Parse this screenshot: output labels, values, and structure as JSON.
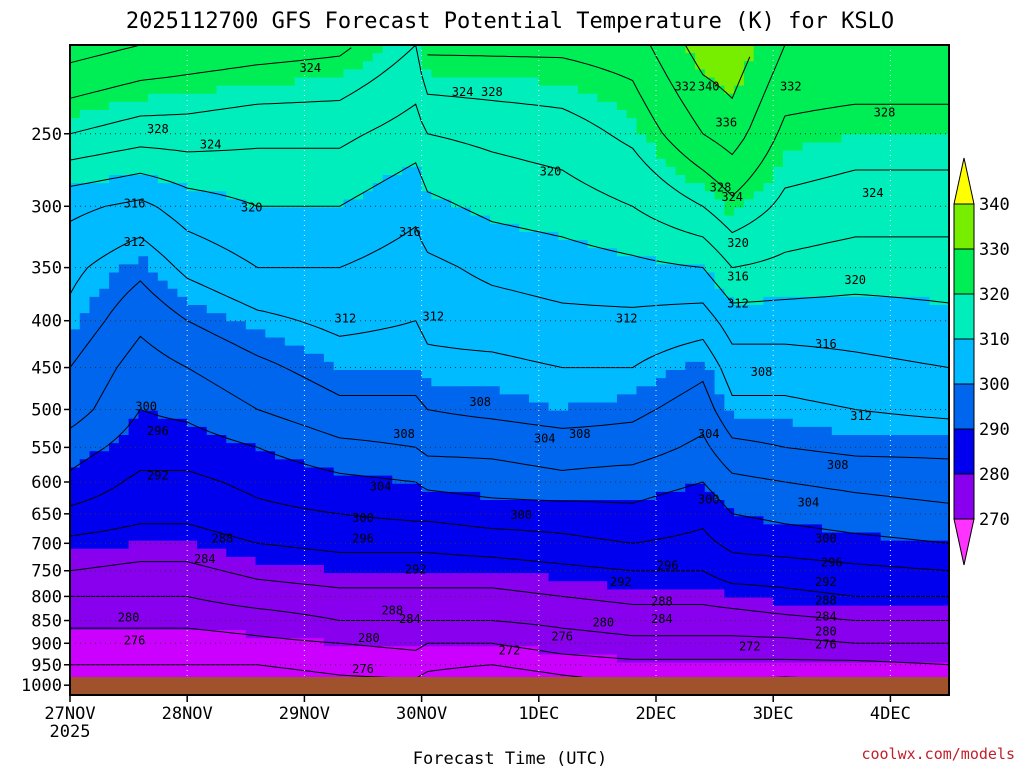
{
  "chart_data": {
    "type": "heatmap",
    "title": "2025112700 GFS Forecast Potential Temperature (K) for KSLO",
    "xlabel": "Forecast Time (UTC)",
    "ylabel": "",
    "credit": "coolwx.com/models",
    "x_ticks": [
      "27NOV",
      "28NOV",
      "29NOV",
      "30NOV",
      "1DEC",
      "2DEC",
      "3DEC",
      "4DEC"
    ],
    "x_sub_label": "2025",
    "x_range_days": [
      0,
      7.5
    ],
    "y_ticks": [
      250,
      300,
      350,
      400,
      450,
      500,
      550,
      600,
      650,
      700,
      750,
      800,
      850,
      900,
      950,
      1000
    ],
    "y_range_hpa": [
      200,
      1025
    ],
    "y_scale": "log",
    "grid": true,
    "colorbar": {
      "labels": [
        270,
        280,
        290,
        300,
        310,
        320,
        330,
        340
      ],
      "colors": [
        "#ff33ff",
        "#cc00ff",
        "#8800ee",
        "#0000ee",
        "#0066ee",
        "#00bbff",
        "#00eebb",
        "#00ee55",
        "#77ee00",
        "#ffff00"
      ]
    },
    "ground_color": "#a0522d",
    "profile_levels_hpa": [
      200,
      250,
      300,
      350,
      400,
      450,
      500,
      550,
      600,
      650,
      700,
      750,
      800,
      850,
      900,
      950,
      1000
    ],
    "profiles": [
      {
        "day": 0.0,
        "theta": [
          338,
          328,
          317,
          313,
          311,
          308,
          306,
          302,
          299,
          295,
          291,
          288,
          284,
          281,
          278,
          276,
          274
        ]
      },
      {
        "day": 0.6,
        "theta": [
          336,
          326,
          315,
          309,
          305,
          302,
          300,
          298,
          295,
          293,
          290,
          287,
          284,
          281,
          278,
          276,
          274
        ]
      },
      {
        "day": 1.0,
        "theta": [
          335,
          326,
          318,
          313,
          308,
          304,
          301,
          298,
          295,
          293,
          290,
          287,
          284,
          281,
          278,
          276,
          274
        ]
      },
      {
        "day": 1.6,
        "theta": [
          334,
          325,
          320,
          316,
          311,
          307,
          304,
          300,
          297,
          295,
          292,
          289,
          286,
          282,
          279,
          276,
          274
        ]
      },
      {
        "day": 2.3,
        "theta": [
          333,
          325,
          320,
          316,
          313,
          310,
          307,
          303,
          299,
          296,
          293,
          290,
          287,
          284,
          280,
          277,
          275
        ]
      },
      {
        "day": 2.95,
        "theta": [
          328,
          322,
          317,
          314,
          312,
          310,
          307,
          304,
          300,
          297,
          293,
          290,
          287,
          284,
          281,
          278,
          275
        ]
      },
      {
        "day": 3.05,
        "theta": [
          333,
          324,
          319,
          315,
          313,
          311,
          308,
          305,
          301,
          297,
          293,
          290,
          287,
          284,
          280,
          277,
          274
        ]
      },
      {
        "day": 3.6,
        "theta": [
          333,
          325,
          321,
          317,
          314,
          311,
          309,
          305,
          302,
          298,
          294,
          290,
          287,
          284,
          280,
          276,
          272
        ]
      },
      {
        "day": 4.2,
        "theta": [
          333,
          326,
          322,
          318,
          315,
          312,
          310,
          306,
          303,
          298,
          295,
          291,
          288,
          285,
          282,
          278,
          274
        ]
      },
      {
        "day": 4.8,
        "theta": [
          334,
          329,
          324,
          319,
          315,
          312,
          309,
          306,
          302,
          299,
          296,
          292,
          289,
          286,
          283,
          279,
          276
        ]
      },
      {
        "day": 5.4,
        "theta": [
          342,
          336,
          328,
          320,
          314,
          309,
          306,
          303,
          300,
          297,
          295,
          292,
          289,
          286,
          283,
          279,
          276
        ]
      },
      {
        "day": 5.65,
        "theta": [
          343,
          338,
          331,
          324,
          318,
          314,
          311,
          307,
          303,
          300,
          297,
          294,
          290,
          286,
          283,
          279,
          275
        ]
      },
      {
        "day": 6.1,
        "theta": [
          336,
          331,
          327,
          323,
          318,
          314,
          311,
          308,
          304,
          301,
          298,
          294,
          291,
          287,
          283,
          279,
          274
        ]
      },
      {
        "day": 6.7,
        "theta": [
          336,
          330,
          326,
          322,
          318,
          315,
          312,
          309,
          305,
          302,
          299,
          295,
          292,
          288,
          284,
          279,
          275
        ]
      },
      {
        "day": 7.5,
        "theta": [
          336,
          330,
          326,
          322,
          319,
          316,
          313,
          309,
          306,
          303,
          300,
          296,
          292,
          288,
          284,
          280,
          276
        ]
      }
    ],
    "contour_labels": [
      {
        "text": "324",
        "day": 2.05,
        "hpa": 212
      },
      {
        "text": "324",
        "day": 3.35,
        "hpa": 225
      },
      {
        "text": "328",
        "day": 3.6,
        "hpa": 225
      },
      {
        "text": "332",
        "day": 5.25,
        "hpa": 222
      },
      {
        "text": "340",
        "day": 5.45,
        "hpa": 222
      },
      {
        "text": "332",
        "day": 6.15,
        "hpa": 222
      },
      {
        "text": "328",
        "day": 6.95,
        "hpa": 237
      },
      {
        "text": "336",
        "day": 5.6,
        "hpa": 243
      },
      {
        "text": "328",
        "day": 0.75,
        "hpa": 247
      },
      {
        "text": "324",
        "day": 1.2,
        "hpa": 257
      },
      {
        "text": "320",
        "day": 4.1,
        "hpa": 275
      },
      {
        "text": "328",
        "day": 5.55,
        "hpa": 286
      },
      {
        "text": "324",
        "day": 5.65,
        "hpa": 293
      },
      {
        "text": "324",
        "day": 6.85,
        "hpa": 290
      },
      {
        "text": "316",
        "day": 0.55,
        "hpa": 298
      },
      {
        "text": "320",
        "day": 1.55,
        "hpa": 301
      },
      {
        "text": "316",
        "day": 2.9,
        "hpa": 320
      },
      {
        "text": "320",
        "day": 5.7,
        "hpa": 329
      },
      {
        "text": "312",
        "day": 0.55,
        "hpa": 328
      },
      {
        "text": "316",
        "day": 5.7,
        "hpa": 358
      },
      {
        "text": "320",
        "day": 6.7,
        "hpa": 361
      },
      {
        "text": "312",
        "day": 5.7,
        "hpa": 383
      },
      {
        "text": "312",
        "day": 2.35,
        "hpa": 398
      },
      {
        "text": "312",
        "day": 3.1,
        "hpa": 396
      },
      {
        "text": "312",
        "day": 4.75,
        "hpa": 398
      },
      {
        "text": "316",
        "day": 6.45,
        "hpa": 424
      },
      {
        "text": "308",
        "day": 5.9,
        "hpa": 455
      },
      {
        "text": "308",
        "day": 3.5,
        "hpa": 491
      },
      {
        "text": "312",
        "day": 6.75,
        "hpa": 508
      },
      {
        "text": "300",
        "day": 0.65,
        "hpa": 496
      },
      {
        "text": "296",
        "day": 0.75,
        "hpa": 528
      },
      {
        "text": "308",
        "day": 2.85,
        "hpa": 532
      },
      {
        "text": "308",
        "day": 4.35,
        "hpa": 532
      },
      {
        "text": "304",
        "day": 5.45,
        "hpa": 532
      },
      {
        "text": "304",
        "day": 4.05,
        "hpa": 538
      },
      {
        "text": "308",
        "day": 6.55,
        "hpa": 575
      },
      {
        "text": "292",
        "day": 0.75,
        "hpa": 590
      },
      {
        "text": "304",
        "day": 2.65,
        "hpa": 607
      },
      {
        "text": "300",
        "day": 5.45,
        "hpa": 627
      },
      {
        "text": "304",
        "day": 6.3,
        "hpa": 632
      },
      {
        "text": "300",
        "day": 2.5,
        "hpa": 657
      },
      {
        "text": "300",
        "day": 3.85,
        "hpa": 652
      },
      {
        "text": "288",
        "day": 1.3,
        "hpa": 692
      },
      {
        "text": "296",
        "day": 2.5,
        "hpa": 692
      },
      {
        "text": "300",
        "day": 6.45,
        "hpa": 692
      },
      {
        "text": "284",
        "day": 1.15,
        "hpa": 728
      },
      {
        "text": "292",
        "day": 2.95,
        "hpa": 748
      },
      {
        "text": "296",
        "day": 5.1,
        "hpa": 740
      },
      {
        "text": "296",
        "day": 6.5,
        "hpa": 735
      },
      {
        "text": "292",
        "day": 4.7,
        "hpa": 772
      },
      {
        "text": "292",
        "day": 6.45,
        "hpa": 772
      },
      {
        "text": "288",
        "day": 2.75,
        "hpa": 829
      },
      {
        "text": "288",
        "day": 5.05,
        "hpa": 810
      },
      {
        "text": "288",
        "day": 6.45,
        "hpa": 808
      },
      {
        "text": "284",
        "day": 2.9,
        "hpa": 847
      },
      {
        "text": "284",
        "day": 5.05,
        "hpa": 847
      },
      {
        "text": "284",
        "day": 6.45,
        "hpa": 841
      },
      {
        "text": "280",
        "day": 0.5,
        "hpa": 844
      },
      {
        "text": "280",
        "day": 4.55,
        "hpa": 854
      },
      {
        "text": "280",
        "day": 6.45,
        "hpa": 874
      },
      {
        "text": "276",
        "day": 0.55,
        "hpa": 894
      },
      {
        "text": "280",
        "day": 2.55,
        "hpa": 888
      },
      {
        "text": "276",
        "day": 4.2,
        "hpa": 885
      },
      {
        "text": "276",
        "day": 6.45,
        "hpa": 903
      },
      {
        "text": "272",
        "day": 3.75,
        "hpa": 916
      },
      {
        "text": "272",
        "day": 5.8,
        "hpa": 907
      },
      {
        "text": "276",
        "day": 2.5,
        "hpa": 960
      }
    ]
  }
}
